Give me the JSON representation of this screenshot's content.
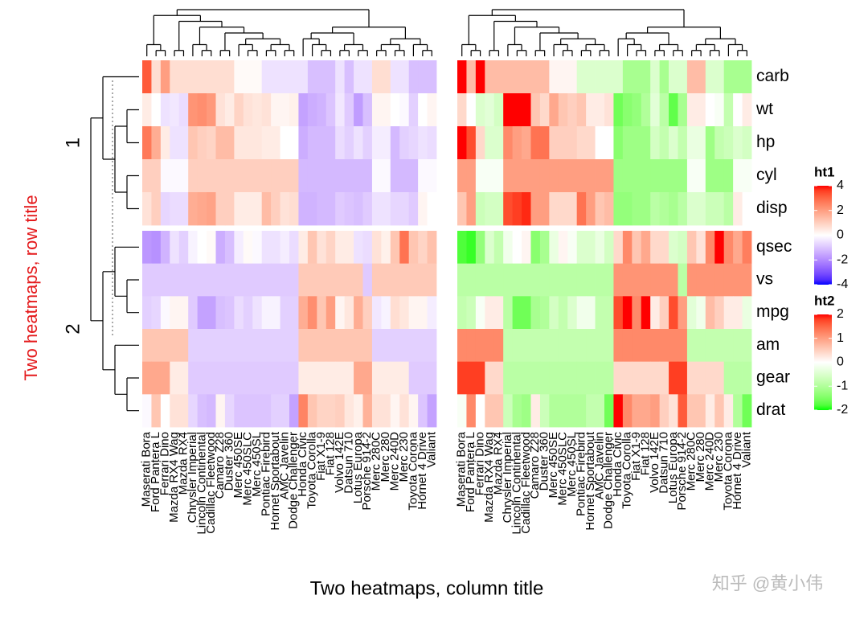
{
  "chart_data": {
    "type": "heatmap",
    "row_title": "Two heatmaps, row title",
    "column_title": "Two heatmaps, column title",
    "watermark": "知乎 @黄小伟",
    "row_slices": [
      {
        "label": "1",
        "rows": [
          "carb",
          "wt",
          "hp",
          "cyl",
          "disp"
        ]
      },
      {
        "label": "2",
        "rows": [
          "qsec",
          "vs",
          "mpg",
          "am",
          "gear",
          "drat"
        ]
      }
    ],
    "columns": [
      "Maserati Bora",
      "Ford Pantera L",
      "Ferrari Dino",
      "Mazda RX4 Wag",
      "Mazda RX4",
      "Chrysler Imperial",
      "Lincoln Continental",
      "Cadillac Fleetwood",
      "Camaro Z28",
      "Duster 360",
      "Merc 450SE",
      "Merc 450SLC",
      "Merc 450SL",
      "Pontiac Firebird",
      "Hornet Sportabout",
      "AMC Javelin",
      "Dodge Challenger",
      "Honda Civic",
      "Toyota Corolla",
      "Fiat X1-9",
      "Fiat 128",
      "Volvo 142E",
      "Datsun 710",
      "Lotus Europa",
      "Porsche 914-2",
      "Merc 280C",
      "Merc 280",
      "Merc 240D",
      "Merc 230",
      "Toyota Corona",
      "Hornet 4 Drive",
      "Valiant"
    ],
    "values": [
      [
        3.2,
        0.7,
        2.0,
        0.7,
        0.7,
        0.7,
        0.7,
        0.7,
        0.7,
        0.7,
        0.1,
        0.1,
        0.1,
        -0.5,
        -0.5,
        -0.5,
        -0.5,
        -0.5,
        -1.1,
        -1.1,
        -1.1,
        -0.5,
        -1.1,
        -0.5,
        -0.5,
        0.7,
        0.7,
        -0.5,
        -0.5,
        -1.1,
        -1.1,
        -1.1
      ],
      [
        0.4,
        0,
        -0.5,
        -0.4,
        -0.6,
        2.2,
        2.3,
        2.1,
        0.6,
        0.4,
        0.9,
        0.6,
        0.5,
        0.6,
        0.2,
        0.2,
        0.3,
        -1.6,
        -1.4,
        -1.3,
        -1.0,
        -0.4,
        -0.9,
        -1.7,
        -1.1,
        0.2,
        0.2,
        0,
        -0.1,
        -0.8,
        0,
        0.2
      ],
      [
        2.7,
        1.7,
        0.4,
        -0.5,
        -0.5,
        1.2,
        1.0,
        0.9,
        1.4,
        1.4,
        0.5,
        0.5,
        0.5,
        0.4,
        0.4,
        0,
        0,
        -1.4,
        -1.2,
        -1.2,
        -1.2,
        -0.6,
        -0.8,
        -0.5,
        -0.8,
        -0.3,
        -0.3,
        -1.2,
        -0.8,
        -0.7,
        -0.5,
        -0.6
      ],
      [
        1.0,
        1.0,
        -0.1,
        -0.1,
        -0.1,
        1.0,
        1.0,
        1.0,
        1.0,
        1.0,
        1.0,
        1.0,
        1.0,
        1.0,
        1.0,
        1.0,
        1.0,
        -1.2,
        -1.2,
        -1.2,
        -1.2,
        -1.2,
        -1.2,
        -1.2,
        -1.2,
        -0.1,
        -0.1,
        -1.2,
        -1.2,
        -1.2,
        -0.1,
        -0.1
      ],
      [
        0.6,
        1.0,
        -0.7,
        -0.6,
        -0.6,
        1.7,
        1.8,
        1.9,
        1.0,
        1.0,
        0.4,
        0.4,
        0.4,
        1.4,
        1.0,
        0.6,
        0.7,
        -1.3,
        -1.3,
        -1.2,
        -1.2,
        -0.9,
        -1.0,
        -1.1,
        -0.9,
        -0.5,
        -0.5,
        -0.7,
        -0.7,
        -0.9,
        0.2,
        0
      ],
      [
        -1.8,
        -1.9,
        -1.3,
        -0.5,
        -0.8,
        -0.2,
        0,
        0.1,
        -1.4,
        -1.1,
        -0.3,
        0.1,
        -0.1,
        -0.5,
        -0.5,
        -0.3,
        -0.6,
        0.4,
        1.2,
        0.6,
        0.9,
        0.4,
        0.4,
        -0.5,
        -0.6,
        0.6,
        0.3,
        1.2,
        2.8,
        1.2,
        0.9,
        1.3
      ],
      [
        -0.9,
        -0.9,
        -0.9,
        -0.9,
        -0.9,
        -0.9,
        -0.9,
        -0.9,
        -0.9,
        -0.9,
        -0.9,
        -0.9,
        -0.9,
        -0.9,
        -0.9,
        -0.9,
        -0.9,
        1.1,
        1.1,
        1.1,
        1.1,
        1.1,
        1.1,
        1.1,
        -0.9,
        1.1,
        1.1,
        1.1,
        1.1,
        1.1,
        1.1,
        1.1
      ],
      [
        -0.8,
        -0.7,
        -0.1,
        0.2,
        0.2,
        -0.9,
        -1.6,
        -1.6,
        -1.1,
        -1.0,
        -0.6,
        -0.8,
        -0.5,
        -0.2,
        -0.2,
        -0.8,
        -0.8,
        1.7,
        2.3,
        1.2,
        2.0,
        0.2,
        0.5,
        1.7,
        1.0,
        -0.4,
        -0.2,
        0.7,
        0.5,
        0.2,
        0.2,
        -0.3
      ],
      [
        1.2,
        1.2,
        1.2,
        1.2,
        1.2,
        -0.8,
        -0.8,
        -0.8,
        -0.8,
        -0.8,
        -0.8,
        -0.8,
        -0.8,
        -0.8,
        -0.8,
        -0.8,
        -0.8,
        1.2,
        1.2,
        1.2,
        1.2,
        1.2,
        1.2,
        1.2,
        1.2,
        -0.8,
        -0.8,
        -0.8,
        -0.8,
        -0.8,
        -0.8,
        -0.8
      ],
      [
        1.8,
        1.8,
        1.8,
        0.4,
        0.4,
        -0.9,
        -0.9,
        -0.9,
        -0.9,
        -0.9,
        -0.9,
        -0.9,
        -0.9,
        -0.9,
        -0.9,
        -0.9,
        -0.9,
        0.4,
        0.4,
        0.4,
        0.4,
        0.4,
        0.4,
        1.8,
        1.8,
        0.4,
        0.4,
        0.4,
        0.4,
        -0.9,
        -0.9,
        -0.9
      ],
      [
        -0.1,
        1.2,
        0,
        0.6,
        0.6,
        -0.7,
        -1.1,
        -1.2,
        0.2,
        -0.7,
        -1.0,
        -1.0,
        -1.0,
        -1.0,
        -0.8,
        -0.8,
        -1.6,
        2.5,
        1.2,
        0.9,
        0.9,
        1.0,
        0.5,
        0.3,
        1.6,
        0.6,
        0.6,
        0.2,
        0.6,
        0.2,
        -1.0,
        -1.6
      ]
    ],
    "heatmaps": [
      {
        "name": "ht1",
        "breaks": [
          -4,
          0,
          4
        ],
        "colors": [
          "#0000ff",
          "#ffffff",
          "#ff0000"
        ],
        "ticks": [
          -4,
          -2,
          0,
          2,
          4
        ]
      },
      {
        "name": "ht2",
        "breaks": [
          -2,
          0,
          2
        ],
        "colors": [
          "#00ff00",
          "#ffffff",
          "#ff0000"
        ],
        "ticks": [
          -2,
          -1,
          0,
          1,
          2
        ]
      }
    ]
  }
}
